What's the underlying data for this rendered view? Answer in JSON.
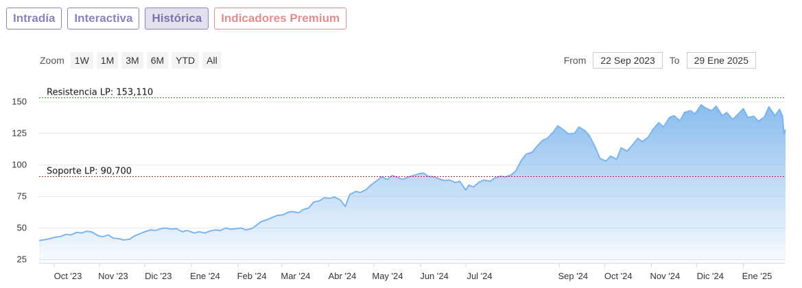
{
  "tabs": [
    {
      "label": "Intradía",
      "active": false
    },
    {
      "label": "Interactiva",
      "active": false
    },
    {
      "label": "Histórica",
      "active": true
    },
    {
      "label": "Indicadores Premium",
      "active": false
    }
  ],
  "range_selector": {
    "zoom_label": "Zoom",
    "buttons": [
      "1W",
      "1M",
      "3M",
      "6M",
      "YTD",
      "All"
    ],
    "from_label": "From",
    "from_value": "22 Sep 2023",
    "to_label": "To",
    "to_value": "29 Ene 2025"
  },
  "colors": {
    "line": "#7cb5ec",
    "area_top": "#7cb5ec",
    "resistance": "#1f7a1f",
    "support": "#b22222"
  },
  "chart_data": {
    "type": "area",
    "x_axis": {
      "type": "date",
      "min": "2023-09-22",
      "max": "2025-01-29",
      "ticks": [
        {
          "date": "2023-10-02",
          "label": "Oct '23"
        },
        {
          "date": "2023-11-01",
          "label": "Nov '23"
        },
        {
          "date": "2023-12-01",
          "label": "Dic '23"
        },
        {
          "date": "2024-01-01",
          "label": "Ene '24"
        },
        {
          "date": "2024-02-01",
          "label": "Feb '24"
        },
        {
          "date": "2024-03-01",
          "label": "Mar '24"
        },
        {
          "date": "2024-04-01",
          "label": "Abr '24"
        },
        {
          "date": "2024-05-01",
          "label": "May '24"
        },
        {
          "date": "2024-06-01",
          "label": "Jun '24"
        },
        {
          "date": "2024-07-01",
          "label": "Jul '24"
        },
        {
          "date": "2024-09-01",
          "label": "Sep '24"
        },
        {
          "date": "2024-10-01",
          "label": "Oct '24"
        },
        {
          "date": "2024-11-01",
          "label": "Nov '24"
        },
        {
          "date": "2024-12-01",
          "label": "Dic '24"
        },
        {
          "date": "2025-01-01",
          "label": "Ene '25"
        }
      ]
    },
    "y_axis": {
      "ticks": [
        25,
        50,
        75,
        100,
        125,
        150
      ],
      "ylim": [
        22,
        160
      ],
      "grid": true
    },
    "series": [
      {
        "points": [
          [
            "2023-09-22",
            40.0
          ],
          [
            "2023-09-26",
            40.8
          ],
          [
            "2023-09-29",
            41.5
          ],
          [
            "2023-10-03",
            42.8
          ],
          [
            "2023-10-06",
            43.2
          ],
          [
            "2023-10-10",
            45.0
          ],
          [
            "2023-10-13",
            44.5
          ],
          [
            "2023-10-17",
            46.5
          ],
          [
            "2023-10-20",
            46.0
          ],
          [
            "2023-10-24",
            47.5
          ],
          [
            "2023-10-27",
            46.8
          ],
          [
            "2023-10-31",
            44.0
          ],
          [
            "2023-11-03",
            43.0
          ],
          [
            "2023-11-07",
            44.5
          ],
          [
            "2023-11-10",
            42.0
          ],
          [
            "2023-11-14",
            41.5
          ],
          [
            "2023-11-17",
            40.5
          ],
          [
            "2023-11-21",
            41.0
          ],
          [
            "2023-11-24",
            43.5
          ],
          [
            "2023-11-28",
            45.5
          ],
          [
            "2023-12-01",
            47.0
          ],
          [
            "2023-12-05",
            48.5
          ],
          [
            "2023-12-08",
            48.0
          ],
          [
            "2023-12-12",
            49.5
          ],
          [
            "2023-12-15",
            50.0
          ],
          [
            "2023-12-19",
            49.0
          ],
          [
            "2023-12-22",
            49.5
          ],
          [
            "2023-12-26",
            47.0
          ],
          [
            "2023-12-29",
            48.0
          ],
          [
            "2024-01-03",
            46.0
          ],
          [
            "2024-01-06",
            47.0
          ],
          [
            "2024-01-10",
            46.0
          ],
          [
            "2024-01-13",
            47.5
          ],
          [
            "2024-01-17",
            48.5
          ],
          [
            "2024-01-20",
            48.0
          ],
          [
            "2024-01-24",
            50.0
          ],
          [
            "2024-01-27",
            49.0
          ],
          [
            "2024-01-31",
            49.5
          ],
          [
            "2024-02-03",
            50.0
          ],
          [
            "2024-02-06",
            48.5
          ],
          [
            "2024-02-10",
            49.5
          ],
          [
            "2024-02-13",
            52.0
          ],
          [
            "2024-02-16",
            55.0
          ],
          [
            "2024-02-20",
            56.5
          ],
          [
            "2024-02-23",
            58.0
          ],
          [
            "2024-02-27",
            60.0
          ],
          [
            "2024-03-02",
            60.5
          ],
          [
            "2024-03-05",
            62.5
          ],
          [
            "2024-03-08",
            63.0
          ],
          [
            "2024-03-12",
            62.0
          ],
          [
            "2024-03-15",
            64.5
          ],
          [
            "2024-03-19",
            66.0
          ],
          [
            "2024-03-22",
            70.5
          ],
          [
            "2024-03-26",
            71.5
          ],
          [
            "2024-03-29",
            74.0
          ],
          [
            "2024-04-02",
            73.5
          ],
          [
            "2024-04-05",
            74.5
          ],
          [
            "2024-04-09",
            72.0
          ],
          [
            "2024-04-12",
            67.0
          ],
          [
            "2024-04-15",
            76.5
          ],
          [
            "2024-04-19",
            79.0
          ],
          [
            "2024-04-22",
            78.0
          ],
          [
            "2024-04-26",
            80.5
          ],
          [
            "2024-04-29",
            84.0
          ],
          [
            "2024-05-03",
            87.5
          ],
          [
            "2024-05-06",
            90.5
          ],
          [
            "2024-05-10",
            88.5
          ],
          [
            "2024-05-13",
            91.5
          ],
          [
            "2024-05-17",
            90.0
          ],
          [
            "2024-05-20",
            88.5
          ],
          [
            "2024-05-24",
            90.5
          ],
          [
            "2024-05-27",
            91.5
          ],
          [
            "2024-05-31",
            93.0
          ],
          [
            "2024-06-03",
            93.5
          ],
          [
            "2024-06-06",
            91.0
          ],
          [
            "2024-06-10",
            90.5
          ],
          [
            "2024-06-13",
            89.0
          ],
          [
            "2024-06-17",
            87.5
          ],
          [
            "2024-06-20",
            88.0
          ],
          [
            "2024-06-24",
            86.0
          ],
          [
            "2024-06-27",
            87.0
          ],
          [
            "2024-07-01",
            80.0
          ],
          [
            "2024-07-03",
            84.0
          ],
          [
            "2024-07-06",
            82.5
          ],
          [
            "2024-07-10",
            86.5
          ],
          [
            "2024-07-13",
            88.0
          ],
          [
            "2024-07-17",
            87.0
          ],
          [
            "2024-07-20",
            89.5
          ],
          [
            "2024-07-24",
            91.0
          ],
          [
            "2024-07-27",
            90.5
          ],
          [
            "2024-07-31",
            92.0
          ],
          [
            "2024-08-03",
            95.0
          ],
          [
            "2024-08-07",
            104.0
          ],
          [
            "2024-08-10",
            108.5
          ],
          [
            "2024-08-14",
            110.0
          ],
          [
            "2024-08-17",
            114.5
          ],
          [
            "2024-08-21",
            119.5
          ],
          [
            "2024-08-24",
            121.0
          ],
          [
            "2024-08-28",
            126.0
          ],
          [
            "2024-08-31",
            131.0
          ],
          [
            "2024-09-04",
            127.5
          ],
          [
            "2024-09-07",
            124.5
          ],
          [
            "2024-09-11",
            125.0
          ],
          [
            "2024-09-14",
            130.0
          ],
          [
            "2024-09-18",
            127.0
          ],
          [
            "2024-09-21",
            123.0
          ],
          [
            "2024-09-25",
            113.5
          ],
          [
            "2024-09-28",
            105.0
          ],
          [
            "2024-10-02",
            103.0
          ],
          [
            "2024-10-05",
            107.0
          ],
          [
            "2024-10-09",
            104.5
          ],
          [
            "2024-10-12",
            113.5
          ],
          [
            "2024-10-16",
            111.0
          ],
          [
            "2024-10-19",
            115.0
          ],
          [
            "2024-10-23",
            121.0
          ],
          [
            "2024-10-26",
            118.5
          ],
          [
            "2024-10-30",
            122.0
          ],
          [
            "2024-11-02",
            128.0
          ],
          [
            "2024-11-06",
            133.5
          ],
          [
            "2024-11-09",
            130.0
          ],
          [
            "2024-11-13",
            137.5
          ],
          [
            "2024-11-16",
            139.0
          ],
          [
            "2024-11-20",
            135.0
          ],
          [
            "2024-11-23",
            141.5
          ],
          [
            "2024-11-27",
            143.0
          ],
          [
            "2024-11-30",
            140.5
          ],
          [
            "2024-12-04",
            147.5
          ],
          [
            "2024-12-07",
            145.0
          ],
          [
            "2024-12-11",
            143.0
          ],
          [
            "2024-12-14",
            146.5
          ],
          [
            "2024-12-18",
            139.0
          ],
          [
            "2024-12-21",
            141.5
          ],
          [
            "2024-12-25",
            136.0
          ],
          [
            "2024-12-28",
            139.5
          ],
          [
            "2025-01-01",
            144.5
          ],
          [
            "2025-01-04",
            137.5
          ],
          [
            "2025-01-08",
            138.5
          ],
          [
            "2025-01-11",
            134.5
          ],
          [
            "2025-01-15",
            138.0
          ],
          [
            "2025-01-18",
            146.0
          ],
          [
            "2025-01-22",
            139.0
          ],
          [
            "2025-01-25",
            144.0
          ],
          [
            "2025-01-27",
            138.5
          ],
          [
            "2025-01-28",
            124.5
          ],
          [
            "2025-01-29",
            128.0
          ]
        ]
      }
    ],
    "plot_lines": [
      {
        "label": "Resistencia LP: 153,110",
        "value": 153.11,
        "style": "dashed",
        "color": "#1f7a1f"
      },
      {
        "label": "Soporte LP: 90,700",
        "value": 90.7,
        "style": "dashed",
        "color": "#b22222"
      }
    ]
  }
}
